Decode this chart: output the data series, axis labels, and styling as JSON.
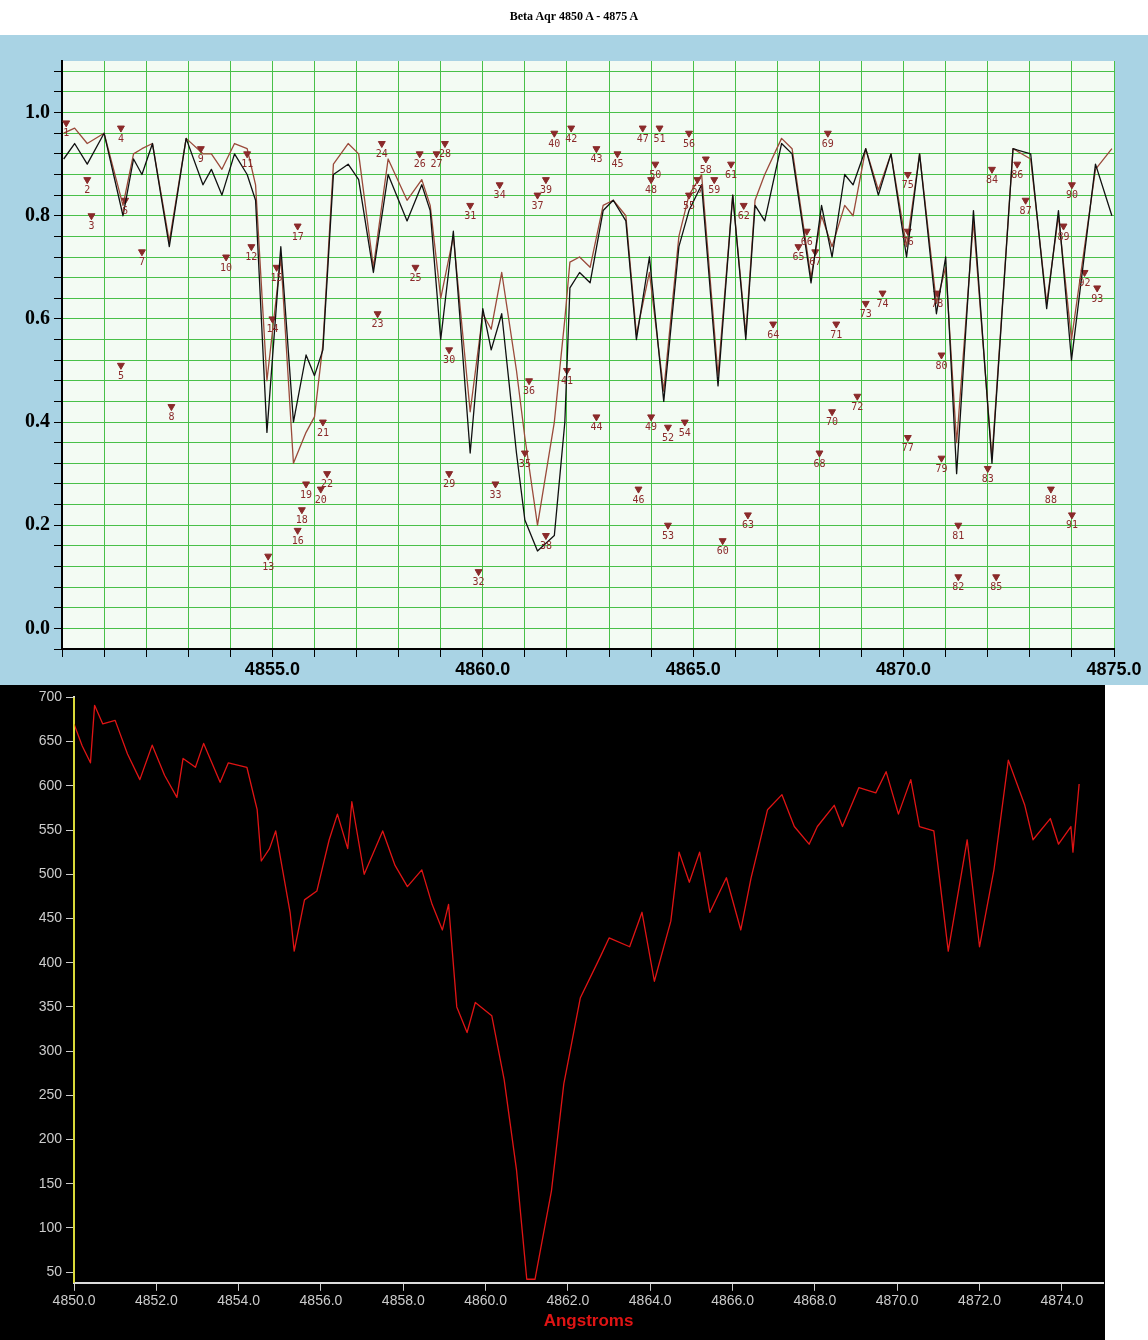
{
  "chart_data": [
    {
      "type": "line",
      "title": "Beta Aqr 4850 A - 4875 A",
      "x": [
        4850.04,
        4850.3,
        4850.6,
        4851.0,
        4851.45,
        4851.7,
        4851.9,
        4852.15,
        4852.55,
        4852.95,
        4853.35,
        4853.55,
        4853.8,
        4854.1,
        4854.4,
        4854.6,
        4854.87,
        4855.2,
        4855.5,
        4855.8,
        4856.0,
        4856.2,
        4856.45,
        4856.8,
        4857.05,
        4857.4,
        4857.75,
        4858.2,
        4858.55,
        4858.75,
        4859.0,
        4859.3,
        4859.7,
        4860.0,
        4860.2,
        4860.45,
        4860.8,
        4861.0,
        4861.3,
        4861.7,
        4861.95,
        4862.07,
        4862.3,
        4862.55,
        4862.86,
        4863.1,
        4863.4,
        4863.65,
        4863.96,
        4864.3,
        4864.66,
        4864.9,
        4865.2,
        4865.59,
        4865.94,
        4866.25,
        4866.47,
        4866.7,
        4867.1,
        4867.35,
        4867.8,
        4868.05,
        4868.3,
        4868.6,
        4868.8,
        4869.1,
        4869.4,
        4869.7,
        4870.07,
        4870.38,
        4870.78,
        4871.0,
        4871.26,
        4871.66,
        4872.1,
        4872.6,
        4873.02,
        4873.4,
        4873.68,
        4873.99,
        4874.56,
        4874.95
      ],
      "series": [
        {
          "color": "#101010",
          "values": [
            0.91,
            0.94,
            0.9,
            0.96,
            0.8,
            0.91,
            0.88,
            0.94,
            0.74,
            0.95,
            0.86,
            0.89,
            0.84,
            0.92,
            0.88,
            0.83,
            0.38,
            0.74,
            0.4,
            0.53,
            0.49,
            0.54,
            0.88,
            0.9,
            0.87,
            0.69,
            0.88,
            0.79,
            0.86,
            0.81,
            0.56,
            0.77,
            0.34,
            0.62,
            0.54,
            0.61,
            0.34,
            0.21,
            0.15,
            0.18,
            0.4,
            0.66,
            0.69,
            0.67,
            0.81,
            0.83,
            0.79,
            0.56,
            0.72,
            0.44,
            0.74,
            0.81,
            0.86,
            0.47,
            0.84,
            0.56,
            0.82,
            0.79,
            0.94,
            0.92,
            0.67,
            0.82,
            0.72,
            0.88,
            0.86,
            0.93,
            0.84,
            0.92,
            0.72,
            0.92,
            0.61,
            0.72,
            0.3,
            0.81,
            0.32,
            0.93,
            0.92,
            0.62,
            0.81,
            0.52,
            0.9,
            0.8
          ]
        },
        {
          "type": "scatter",
          "color": "#8a2a2a",
          "marker": "triangle",
          "x": [
            4850.1,
            4850.6,
            4850.7,
            4851.4,
            4851.4,
            4851.5,
            4851.9,
            4852.6,
            4853.3,
            4853.9,
            4854.4,
            4854.5,
            4854.9,
            4855.0,
            4855.1,
            4855.6,
            4855.6,
            4855.7,
            4855.8,
            4856.15,
            4856.2,
            4856.3,
            4857.5,
            4857.6,
            4858.4,
            4858.5,
            4858.9,
            4859.1,
            4859.2,
            4859.2,
            4859.7,
            4859.9,
            4860.3,
            4860.4,
            4861.0,
            4861.1,
            4861.3,
            4861.5,
            4861.5,
            4861.7,
            4862.0,
            4862.1,
            4862.7,
            4862.7,
            4863.2,
            4863.7,
            4863.8,
            4864.0,
            4864.0,
            4864.1,
            4864.2,
            4864.4,
            4864.4,
            4864.8,
            4864.9,
            4864.9,
            4865.1,
            4865.3,
            4865.5,
            4865.7,
            4865.9,
            4866.2,
            4866.3,
            4866.9,
            4867.5,
            4867.7,
            4867.9,
            4868.0,
            4868.2,
            4868.3,
            4868.4,
            4868.9,
            4869.1,
            4869.5,
            4870.1,
            4870.1,
            4870.1,
            4870.8,
            4870.9,
            4870.9,
            4871.3,
            4871.3,
            4872.0,
            4872.1,
            4872.2,
            4872.7,
            4872.9,
            4873.5,
            4873.8,
            4874.0,
            4874.0,
            4874.3,
            4874.6
          ],
          "values": [
            0.98,
            0.87,
            0.8,
            0.97,
            0.51,
            0.83,
            0.73,
            0.43,
            0.93,
            0.72,
            0.92,
            0.74,
            0.14,
            0.6,
            0.7,
            0.19,
            0.78,
            0.23,
            0.28,
            0.27,
            0.4,
            0.3,
            0.61,
            0.94,
            0.7,
            0.92,
            0.92,
            0.94,
            0.3,
            0.54,
            0.82,
            0.11,
            0.28,
            0.86,
            0.34,
            0.48,
            0.84,
            0.18,
            0.87,
            0.96,
            0.5,
            0.97,
            0.93,
            0.41,
            0.92,
            0.27,
            0.97,
            0.87,
            0.41,
            0.9,
            0.97,
            0.39,
            0.2,
            0.4,
            0.84,
            0.96,
            0.87,
            0.91,
            0.87,
            0.17,
            0.9,
            0.82,
            0.22,
            0.59,
            0.74,
            0.77,
            0.73,
            0.34,
            0.96,
            0.42,
            0.59,
            0.45,
            0.63,
            0.65,
            0.88,
            0.77,
            0.37,
            0.65,
            0.33,
            0.53,
            0.2,
            0.1,
            0.31,
            0.89,
            0.1,
            0.9,
            0.83,
            0.27,
            0.78,
            0.86,
            0.22,
            0.69,
            0.66
          ]
        },
        {
          "color": "#9a4a3a",
          "values": [
            0.96,
            0.97,
            0.94,
            0.96,
            0.82,
            0.92,
            0.93,
            0.94,
            0.75,
            0.95,
            0.92,
            0.92,
            0.89,
            0.94,
            0.93,
            0.86,
            0.48,
            0.72,
            0.32,
            0.38,
            0.41,
            0.55,
            0.9,
            0.94,
            0.92,
            0.7,
            0.91,
            0.83,
            0.87,
            0.82,
            0.64,
            0.76,
            0.42,
            0.61,
            0.58,
            0.69,
            0.5,
            0.37,
            0.2,
            0.4,
            0.6,
            0.71,
            0.72,
            0.7,
            0.82,
            0.83,
            0.8,
            0.57,
            0.69,
            0.46,
            0.76,
            0.84,
            0.88,
            0.49,
            0.84,
            0.57,
            0.83,
            0.88,
            0.95,
            0.93,
            0.68,
            0.8,
            0.74,
            0.82,
            0.8,
            0.93,
            0.85,
            0.92,
            0.74,
            0.92,
            0.63,
            0.7,
            0.36,
            0.79,
            0.33,
            0.93,
            0.91,
            0.63,
            0.8,
            0.56,
            0.89,
            0.93
          ]
        }
      ],
      "xlim": [
        4850,
        4875
      ],
      "xticks": [
        {
          "value": 4850,
          "label": null
        },
        {
          "value": 4851,
          "label": null
        },
        {
          "value": 4852,
          "label": null
        },
        {
          "value": 4853,
          "label": null
        },
        {
          "value": 4854,
          "label": null
        },
        {
          "value": 4855,
          "label": "4855.0"
        },
        {
          "value": 4856,
          "label": null
        },
        {
          "value": 4857,
          "label": null
        },
        {
          "value": 4858,
          "label": null
        },
        {
          "value": 4859,
          "label": null
        },
        {
          "value": 4860,
          "label": "4860.0"
        },
        {
          "value": 4861,
          "label": null
        },
        {
          "value": 4862,
          "label": null
        },
        {
          "value": 4863,
          "label": null
        },
        {
          "value": 4864,
          "label": null
        },
        {
          "value": 4865,
          "label": "4865.0"
        },
        {
          "value": 4866,
          "label": null
        },
        {
          "value": 4867,
          "label": null
        },
        {
          "value": 4868,
          "label": null
        },
        {
          "value": 4869,
          "label": null
        },
        {
          "value": 4870,
          "label": "4870.0"
        },
        {
          "value": 4871,
          "label": null
        },
        {
          "value": 4872,
          "label": null
        },
        {
          "value": 4873,
          "label": null
        },
        {
          "value": 4874,
          "label": null
        },
        {
          "value": 4875,
          "label": "4875.0"
        }
      ],
      "ylim": [
        -0.04,
        1.1
      ],
      "yticks": [
        {
          "value": -0.04,
          "label": null
        },
        {
          "value": 0,
          "label": "0.0"
        },
        {
          "value": 0.04,
          "label": null
        },
        {
          "value": 0.08,
          "label": null
        },
        {
          "value": 0.12,
          "label": null
        },
        {
          "value": 0.16,
          "label": null
        },
        {
          "value": 0.2,
          "label": "0.2"
        },
        {
          "value": 0.24,
          "label": null
        },
        {
          "value": 0.28,
          "label": null
        },
        {
          "value": 0.32,
          "label": null
        },
        {
          "value": 0.36,
          "label": null
        },
        {
          "value": 0.4,
          "label": "0.4"
        },
        {
          "value": 0.44,
          "label": null
        },
        {
          "value": 0.48,
          "label": null
        },
        {
          "value": 0.52,
          "label": null
        },
        {
          "value": 0.56,
          "label": null
        },
        {
          "value": 0.6,
          "label": "0.6"
        },
        {
          "value": 0.64,
          "label": null
        },
        {
          "value": 0.68,
          "label": null
        },
        {
          "value": 0.72,
          "label": null
        },
        {
          "value": 0.76,
          "label": null
        },
        {
          "value": 0.8,
          "label": "0.8"
        },
        {
          "value": 0.84,
          "label": null
        },
        {
          "value": 0.88,
          "label": null
        },
        {
          "value": 0.92,
          "label": null
        },
        {
          "value": 0.96,
          "label": null
        },
        {
          "value": 1.0,
          "label": "1.0"
        },
        {
          "value": 1.04,
          "label": null
        },
        {
          "value": 1.08,
          "label": null
        }
      ],
      "grid": true,
      "legend": false,
      "marker": "none",
      "line_style": "solid",
      "annotations": [
        "1",
        "2",
        "3",
        "4",
        "5",
        "6",
        "7",
        "8",
        "9",
        "10",
        "11",
        "12",
        "13",
        "14",
        "15",
        "16",
        "17",
        "18",
        "19",
        "20",
        "21",
        "22",
        "23",
        "24",
        "25",
        "26",
        "27",
        "28",
        "29",
        "30",
        "31",
        "32",
        "33",
        "34",
        "35",
        "36",
        "37",
        "38",
        "39",
        "40",
        "41",
        "42",
        "43",
        "44",
        "45",
        "46",
        "47",
        "48",
        "49",
        "50",
        "51",
        "52",
        "53",
        "54",
        "55",
        "56",
        "57",
        "58",
        "59",
        "60",
        "61",
        "62",
        "63",
        "64",
        "65",
        "66",
        "67",
        "68",
        "69",
        "70",
        "71",
        "72",
        "73",
        "74",
        "75",
        "76",
        "77",
        "78",
        "79",
        "80",
        "81",
        "82",
        "83",
        "84",
        "85",
        "86",
        "87",
        "88",
        "89",
        "90",
        "91",
        "92",
        "93"
      ]
    },
    {
      "type": "line",
      "xlabel": "Angstroms",
      "x": [
        4850.0,
        4850.2,
        4850.4,
        4850.5,
        4850.7,
        4851.0,
        4851.3,
        4851.6,
        4851.9,
        4852.2,
        4852.5,
        4852.65,
        4852.95,
        4853.15,
        4853.55,
        4853.75,
        4854.2,
        4854.45,
        4854.55,
        4854.75,
        4854.9,
        4855.25,
        4855.35,
        4855.6,
        4855.9,
        4856.2,
        4856.4,
        4856.65,
        4856.75,
        4857.05,
        4857.5,
        4857.8,
        4858.1,
        4858.45,
        4858.7,
        4858.95,
        4859.1,
        4859.3,
        4859.55,
        4859.75,
        4860.15,
        4860.45,
        4860.75,
        4861.0,
        4861.2,
        4861.6,
        4861.9,
        4862.0,
        4862.3,
        4862.8,
        4863.0,
        4863.5,
        4863.8,
        4864.1,
        4864.5,
        4864.7,
        4864.95,
        4865.2,
        4865.45,
        4865.85,
        4866.2,
        4866.45,
        4866.65,
        4866.85,
        4867.2,
        4867.5,
        4867.86,
        4868.06,
        4868.47,
        4868.67,
        4869.07,
        4869.48,
        4869.73,
        4870.03,
        4870.33,
        4870.54,
        4870.89,
        4871.24,
        4871.7,
        4872.0,
        4872.35,
        4872.7,
        4873.1,
        4873.3,
        4873.72,
        4873.92,
        4874.22,
        4874.27,
        4874.42
      ],
      "series": [
        {
          "color": "#e01414",
          "values": [
            670,
            645,
            626,
            691,
            670,
            674,
            636,
            607,
            646,
            612,
            587,
            631,
            621,
            648,
            604,
            626,
            621,
            573,
            515,
            529,
            549,
            457,
            413,
            471,
            481,
            539,
            568,
            529,
            582,
            500,
            549,
            510,
            486,
            505,
            466,
            437,
            466,
            350,
            321,
            355,
            340,
            268,
            166,
            42,
            42,
            142,
            263,
            287,
            360,
            408,
            428,
            418,
            457,
            379,
            447,
            525,
            491,
            525,
            457,
            496,
            437,
            496,
            534,
            573,
            590,
            554,
            534,
            554,
            578,
            554,
            598,
            592,
            616,
            568,
            607,
            554,
            549,
            413,
            539,
            418,
            505,
            629,
            578,
            539,
            563,
            534,
            554,
            525,
            602
          ]
        }
      ],
      "xlim": [
        4850,
        4875
      ],
      "xticks": [
        {
          "value": 4850,
          "label": "4850.0"
        },
        {
          "value": 4852,
          "label": "4852.0"
        },
        {
          "value": 4854,
          "label": "4854.0"
        },
        {
          "value": 4856,
          "label": "4856.0"
        },
        {
          "value": 4858,
          "label": "4858.0"
        },
        {
          "value": 4860,
          "label": "4860.0"
        },
        {
          "value": 4862,
          "label": "4862.0"
        },
        {
          "value": 4864,
          "label": "4864.0"
        },
        {
          "value": 4866,
          "label": "4866.0"
        },
        {
          "value": 4868,
          "label": "4868.0"
        },
        {
          "value": 4870,
          "label": "4870.0"
        },
        {
          "value": 4872,
          "label": "4872.0"
        },
        {
          "value": 4874,
          "label": "4874.0"
        }
      ],
      "ylim": [
        38,
        700
      ],
      "yticks": [
        50,
        100,
        150,
        200,
        250,
        300,
        350,
        400,
        450,
        500,
        550,
        600,
        650,
        700
      ],
      "grid": false,
      "legend": false,
      "marker": "none",
      "line_style": "solid",
      "ref_lines": [
        {
          "axis": "x",
          "value": 4850,
          "color": "#d8d800"
        }
      ]
    }
  ]
}
